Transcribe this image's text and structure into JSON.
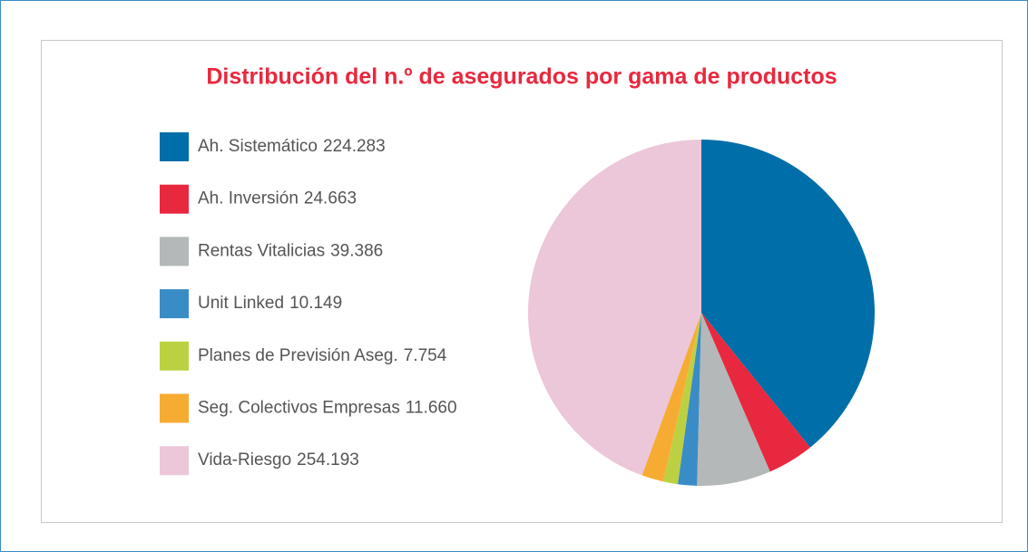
{
  "chart_data": {
    "type": "pie",
    "title": "Distribución del n.º de asegurados por gama de productos",
    "categories": [
      "Ah. Sistemático",
      "Ah. Inversión",
      "Rentas Vitalicias",
      "Unit Linked",
      "Planes de Previsión Aseg.",
      "Seg. Colectivos Empresas",
      "Vida-Riesgo"
    ],
    "values": [
      224283,
      24663,
      39386,
      10149,
      7754,
      11660,
      254193
    ],
    "value_labels": [
      "224.283",
      "24.663",
      "39.386",
      "10.149",
      "7.754",
      "11.660",
      "254.193"
    ],
    "colors": [
      "#006ea8",
      "#e8283e",
      "#b4b8b8",
      "#3a8cc6",
      "#bcd142",
      "#f6ac33",
      "#ecc6d9"
    ],
    "legend": "left"
  }
}
